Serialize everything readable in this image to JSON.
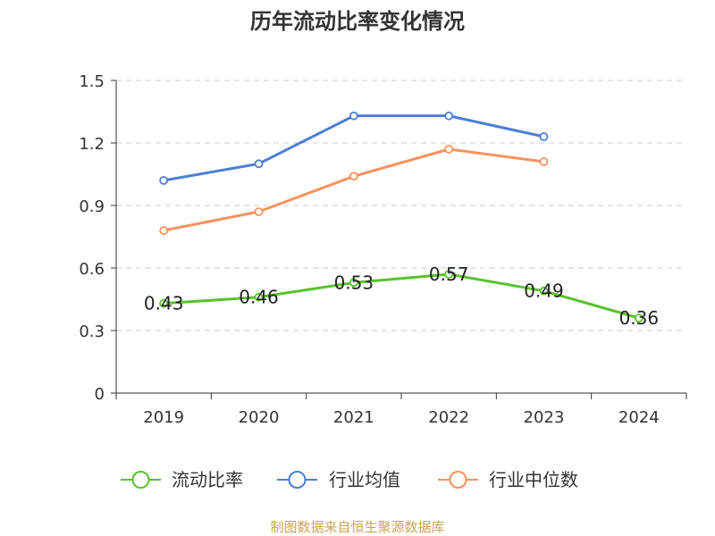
{
  "chart_data": {
    "type": "line",
    "title": "历年流动比率变化情况",
    "categories": [
      "2019",
      "2020",
      "2021",
      "2022",
      "2023",
      "2024"
    ],
    "series": [
      {
        "name": "流动比率",
        "values": [
          0.43,
          0.46,
          0.53,
          0.57,
          0.49,
          0.36
        ],
        "color": "#59c22b",
        "data_labels": true
      },
      {
        "name": "行业均值",
        "values": [
          1.02,
          1.1,
          1.33,
          1.33,
          1.23,
          null
        ],
        "color": "#4b7fd6",
        "data_labels": false
      },
      {
        "name": "行业中位数",
        "values": [
          0.78,
          0.87,
          1.04,
          1.17,
          1.11,
          null
        ],
        "color": "#f8925c",
        "data_labels": false
      }
    ],
    "xlabel": "",
    "ylabel": "",
    "ylim": [
      0,
      1.5
    ],
    "yticks": [
      0,
      0.3,
      0.6,
      0.9,
      1.2,
      1.5
    ],
    "grid": true,
    "legend": "bottom"
  },
  "footer": {
    "source": "制图数据来自恒生聚源数据库"
  }
}
